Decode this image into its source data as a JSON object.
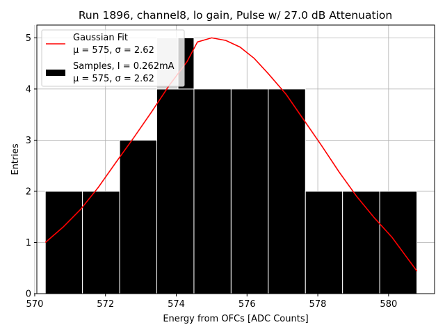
{
  "chart_data": {
    "type": "bar",
    "title": "Run 1896, channel8, lo gain, Pulse w/ 27.0 dB Attenuation",
    "xlabel": "Energy from OFCs [ADC Counts]",
    "ylabel": "Entries",
    "xlim": [
      570.06,
      581.3
    ],
    "ylim": [
      0,
      5.25
    ],
    "xticks": [
      570,
      572,
      574,
      576,
      578,
      580
    ],
    "yticks": [
      0,
      1,
      2,
      3,
      4,
      5
    ],
    "grid": true,
    "legend_position": "top-left",
    "histogram": {
      "name": "Samples, I = 0.262mA",
      "stats": "μ = 575, σ = 2.62",
      "color": "#000000",
      "bins": [
        {
          "x0": 570.3,
          "x1": 571.35,
          "count": 2
        },
        {
          "x0": 571.35,
          "x1": 572.4,
          "count": 2
        },
        {
          "x0": 572.4,
          "x1": 573.45,
          "count": 3
        },
        {
          "x0": 573.45,
          "x1": 574.5,
          "count": 4
        },
        {
          "x0": 574.5,
          "x1": 575.55,
          "count": 4
        },
        {
          "x0": 575.55,
          "x1": 576.6,
          "count": 4
        },
        {
          "x0": 576.6,
          "x1": 577.65,
          "count": 4
        },
        {
          "x0": 577.65,
          "x1": 578.7,
          "count": 2
        },
        {
          "x0": 578.7,
          "x1": 579.75,
          "count": 2
        },
        {
          "x0": 579.75,
          "x1": 580.8,
          "count": 2
        }
      ]
    },
    "overlay_bar": {
      "x0": 573.45,
      "x1": 574.05,
      "count": 5,
      "color": "#cccccc"
    },
    "overlay_bar_dark": {
      "x0": 574.05,
      "x1": 574.5,
      "count": 5
    },
    "fit": {
      "name": "Gaussian Fit",
      "stats": "μ = 575, σ = 2.62",
      "color": "#ff0000",
      "x": [
        570.3,
        570.8,
        571.3,
        571.8,
        572.3,
        572.8,
        573.3,
        573.8,
        574.3,
        574.6,
        575.0,
        575.4,
        575.8,
        576.2,
        576.6,
        577.1,
        577.6,
        578.1,
        578.6,
        579.1,
        579.6,
        580.1,
        580.8
      ],
      "y": [
        1.0,
        1.3,
        1.65,
        2.08,
        2.57,
        3.05,
        3.55,
        4.07,
        4.53,
        4.92,
        5.0,
        4.95,
        4.82,
        4.6,
        4.3,
        3.9,
        3.4,
        2.9,
        2.38,
        1.9,
        1.48,
        1.1,
        0.44
      ]
    }
  }
}
